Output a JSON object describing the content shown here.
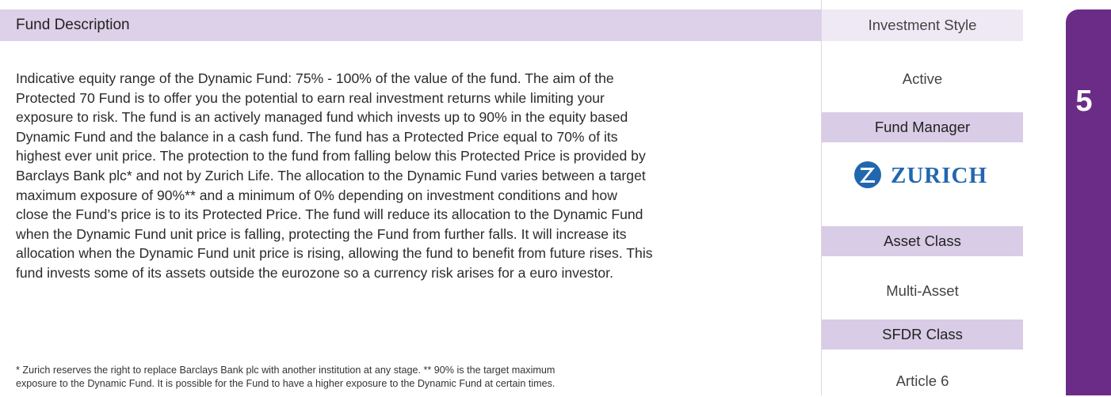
{
  "description": {
    "title": "Fund Description",
    "lines": [
      "Indicative equity range of the Dynamic Fund: 75% - 100% of the value of the fund. The aim of the",
      "Protected 70 Fund is to offer you the potential to earn real investment returns while limiting your",
      "exposure to risk. The fund is an actively managed fund which invests up to 90% in the equity based",
      "Dynamic Fund and the balance in a cash fund. The fund has a Protected Price equal to 70% of its",
      "highest ever unit price. The protection to the fund from falling below this Protected Price is provided by",
      "Barclays Bank plc* and not by Zurich Life. The allocation to the Dynamic Fund varies between a target",
      "maximum exposure of 90%** and a minimum of 0% depending on investment conditions and how",
      "close the Fund’s price is to its Protected Price. The fund will reduce its allocation to the Dynamic Fund",
      "when the Dynamic Fund unit price is falling, protecting the Fund from further falls. It will increase its",
      "allocation when the Dynamic Fund unit price is rising, allowing the fund to benefit from future rises. This",
      "fund invests some of its assets outside the eurozone so a currency risk arises for a euro investor."
    ],
    "footnotes": [
      "* Zurich reserves the right to replace Barclays Bank plc with another institution at any stage. ** 90% is the target maximum",
      "exposure to the Dynamic Fund. It is possible for the Fund to have a higher exposure to the Dynamic Fund at certain times."
    ]
  },
  "sidebar": {
    "investment_style": {
      "label": "Investment Style",
      "value": "Active"
    },
    "fund_manager": {
      "label": "Fund Manager",
      "logo_text": "ZURICH"
    },
    "asset_class": {
      "label": "Asset Class",
      "value": "Multi-Asset"
    },
    "sfdr_class": {
      "label": "SFDR Class",
      "value": "Article 6"
    }
  },
  "tab": {
    "number": "5"
  }
}
